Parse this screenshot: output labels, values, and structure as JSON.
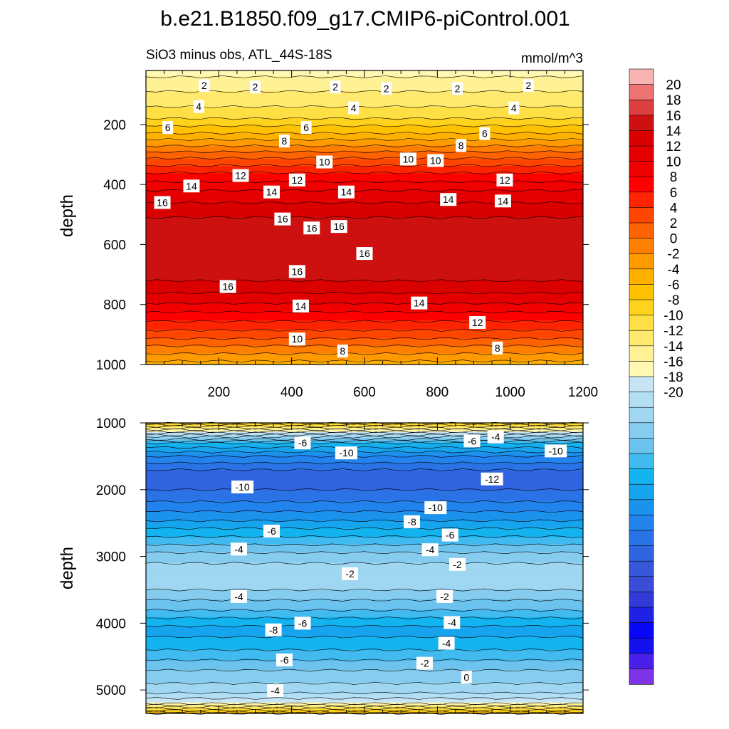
{
  "chart_data": [
    {
      "type": "heatmap",
      "panel": "upper",
      "title": "b.e21.B1850.f09_g17.CMIP6-piControl.001",
      "subtitle_left": "SiO3 minus obs, ATL_44S-18S",
      "units": "mmol/m^3",
      "xlabel": "",
      "ylabel": "depth",
      "xlim": [
        0,
        1200
      ],
      "ylim": [
        1000,
        20
      ],
      "xticks": [
        "200",
        "400",
        "600",
        "800",
        "1000",
        "1200"
      ],
      "yticks": [
        "200",
        "400",
        "600",
        "800",
        "1000"
      ],
      "profile": [
        {
          "depth": 20,
          "value": 0.5
        },
        {
          "depth": 60,
          "value": 1.5
        },
        {
          "depth": 120,
          "value": 2.5
        },
        {
          "depth": 180,
          "value": 4
        },
        {
          "depth": 240,
          "value": 6.5
        },
        {
          "depth": 300,
          "value": 9.5
        },
        {
          "depth": 360,
          "value": 12
        },
        {
          "depth": 420,
          "value": 14
        },
        {
          "depth": 480,
          "value": 15.5
        },
        {
          "depth": 540,
          "value": 16.5
        },
        {
          "depth": 600,
          "value": 17
        },
        {
          "depth": 660,
          "value": 16.8
        },
        {
          "depth": 720,
          "value": 16
        },
        {
          "depth": 780,
          "value": 14.5
        },
        {
          "depth": 840,
          "value": 12.5
        },
        {
          "depth": 900,
          "value": 10.5
        },
        {
          "depth": 950,
          "value": 8.5
        },
        {
          "depth": 1000,
          "value": 6.5
        }
      ],
      "contour_labels": [
        {
          "x": 160,
          "depth": 70,
          "text": "2"
        },
        {
          "x": 300,
          "depth": 75,
          "text": "2"
        },
        {
          "x": 520,
          "depth": 75,
          "text": "2"
        },
        {
          "x": 660,
          "depth": 80,
          "text": "2"
        },
        {
          "x": 855,
          "depth": 80,
          "text": "2"
        },
        {
          "x": 1050,
          "depth": 70,
          "text": "2"
        },
        {
          "x": 145,
          "depth": 140,
          "text": "4"
        },
        {
          "x": 570,
          "depth": 145,
          "text": "4"
        },
        {
          "x": 1010,
          "depth": 145,
          "text": "4"
        },
        {
          "x": 60,
          "depth": 210,
          "text": "6"
        },
        {
          "x": 440,
          "depth": 210,
          "text": "6"
        },
        {
          "x": 930,
          "depth": 230,
          "text": "6"
        },
        {
          "x": 380,
          "depth": 255,
          "text": "8"
        },
        {
          "x": 865,
          "depth": 270,
          "text": "8"
        },
        {
          "x": 490,
          "depth": 325,
          "text": "10"
        },
        {
          "x": 720,
          "depth": 315,
          "text": "10"
        },
        {
          "x": 795,
          "depth": 320,
          "text": "10"
        },
        {
          "x": 260,
          "depth": 370,
          "text": "12"
        },
        {
          "x": 415,
          "depth": 385,
          "text": "12"
        },
        {
          "x": 985,
          "depth": 385,
          "text": "12"
        },
        {
          "x": 125,
          "depth": 405,
          "text": "14"
        },
        {
          "x": 345,
          "depth": 425,
          "text": "14"
        },
        {
          "x": 550,
          "depth": 425,
          "text": "14"
        },
        {
          "x": 830,
          "depth": 450,
          "text": "14"
        },
        {
          "x": 980,
          "depth": 455,
          "text": "14"
        },
        {
          "x": 45,
          "depth": 460,
          "text": "16"
        },
        {
          "x": 375,
          "depth": 515,
          "text": "16"
        },
        {
          "x": 455,
          "depth": 545,
          "text": "16"
        },
        {
          "x": 530,
          "depth": 540,
          "text": "16"
        },
        {
          "x": 600,
          "depth": 630,
          "text": "16"
        },
        {
          "x": 415,
          "depth": 690,
          "text": "16"
        },
        {
          "x": 225,
          "depth": 740,
          "text": "16"
        },
        {
          "x": 425,
          "depth": 805,
          "text": "14"
        },
        {
          "x": 750,
          "depth": 795,
          "text": "14"
        },
        {
          "x": 910,
          "depth": 860,
          "text": "12"
        },
        {
          "x": 415,
          "depth": 915,
          "text": "10"
        },
        {
          "x": 540,
          "depth": 955,
          "text": "8"
        },
        {
          "x": 965,
          "depth": 945,
          "text": "8"
        }
      ]
    },
    {
      "type": "heatmap",
      "panel": "lower",
      "xlabel": "",
      "ylabel": "depth",
      "xlim": [
        0,
        1200
      ],
      "ylim": [
        5350,
        1000
      ],
      "yticks": [
        "1000",
        "2000",
        "3000",
        "4000",
        "5000"
      ],
      "profile": [
        {
          "depth": 1000,
          "value": 5
        },
        {
          "depth": 1150,
          "value": -1
        },
        {
          "depth": 1300,
          "value": -6
        },
        {
          "depth": 1500,
          "value": -9
        },
        {
          "depth": 1700,
          "value": -11
        },
        {
          "depth": 1900,
          "value": -11.5
        },
        {
          "depth": 2100,
          "value": -10.5
        },
        {
          "depth": 2400,
          "value": -8.5
        },
        {
          "depth": 2700,
          "value": -6
        },
        {
          "depth": 3000,
          "value": -3.5
        },
        {
          "depth": 3200,
          "value": -2.5
        },
        {
          "depth": 3500,
          "value": -3
        },
        {
          "depth": 3800,
          "value": -5
        },
        {
          "depth": 4100,
          "value": -7.5
        },
        {
          "depth": 4400,
          "value": -6
        },
        {
          "depth": 4700,
          "value": -4
        },
        {
          "depth": 5000,
          "value": -2.5
        },
        {
          "depth": 5200,
          "value": 0
        },
        {
          "depth": 5350,
          "value": 6
        }
      ],
      "contour_labels": [
        {
          "x": 430,
          "depth": 1300,
          "text": "-6"
        },
        {
          "x": 550,
          "depth": 1450,
          "text": "-10"
        },
        {
          "x": 895,
          "depth": 1270,
          "text": "-6"
        },
        {
          "x": 960,
          "depth": 1210,
          "text": "-4"
        },
        {
          "x": 1125,
          "depth": 1420,
          "text": "-10"
        },
        {
          "x": 950,
          "depth": 1840,
          "text": "-12"
        },
        {
          "x": 265,
          "depth": 1960,
          "text": "-10"
        },
        {
          "x": 795,
          "depth": 2270,
          "text": "-10"
        },
        {
          "x": 730,
          "depth": 2480,
          "text": "-8"
        },
        {
          "x": 345,
          "depth": 2620,
          "text": "-6"
        },
        {
          "x": 835,
          "depth": 2680,
          "text": "-6"
        },
        {
          "x": 255,
          "depth": 2890,
          "text": "-4"
        },
        {
          "x": 780,
          "depth": 2900,
          "text": "-4"
        },
        {
          "x": 855,
          "depth": 3120,
          "text": "-2"
        },
        {
          "x": 560,
          "depth": 3260,
          "text": "-2"
        },
        {
          "x": 255,
          "depth": 3600,
          "text": "-4"
        },
        {
          "x": 820,
          "depth": 3600,
          "text": "-2"
        },
        {
          "x": 840,
          "depth": 3990,
          "text": "-4"
        },
        {
          "x": 430,
          "depth": 4000,
          "text": "-6"
        },
        {
          "x": 350,
          "depth": 4100,
          "text": "-8"
        },
        {
          "x": 825,
          "depth": 4300,
          "text": "-4"
        },
        {
          "x": 380,
          "depth": 4550,
          "text": "-6"
        },
        {
          "x": 765,
          "depth": 4600,
          "text": "-2"
        },
        {
          "x": 880,
          "depth": 4810,
          "text": "0"
        },
        {
          "x": 355,
          "depth": 5010,
          "text": "-4"
        }
      ]
    }
  ],
  "colorbar": {
    "levels": [
      20,
      18,
      16,
      14,
      12,
      10,
      8,
      6,
      4,
      2,
      0,
      -2,
      -4,
      -6,
      -8,
      -10,
      -12,
      -14,
      -16,
      -18,
      -20
    ],
    "tick_labels": [
      "20",
      "18",
      "16",
      "14",
      "12",
      "10",
      "8",
      "6",
      "4",
      "2",
      "0",
      "-2",
      "-4",
      "-6",
      "-8",
      "-10",
      "-12",
      "-14",
      "-16",
      "-18",
      "-20"
    ],
    "colors": [
      "#FAB3B3",
      "#EE7373",
      "#DC4040",
      "#CD1111",
      "#DB0000",
      "#E40000",
      "#F10000",
      "#FF0000",
      "#FF2400",
      "#FF4600",
      "#FF6200",
      "#FF7F00",
      "#FF9A00",
      "#FFB100",
      "#FFC200",
      "#FFD31D",
      "#FFE044",
      "#FFE96E",
      "#FFF196",
      "#FFF9B4",
      "#C8E5F6",
      "#B3DFF4",
      "#9FD6F2",
      "#85CCEF",
      "#6CC3EE",
      "#41BAF0",
      "#12B3EF",
      "#16A4EE",
      "#1B93ED",
      "#2183EB",
      "#2A73E6",
      "#3164E0",
      "#3657D9",
      "#3A4DD6",
      "#303BD8",
      "#1E22E4",
      "#0808F6",
      "#1212EE",
      "#4A1FEA",
      "#7E33E6"
    ]
  }
}
